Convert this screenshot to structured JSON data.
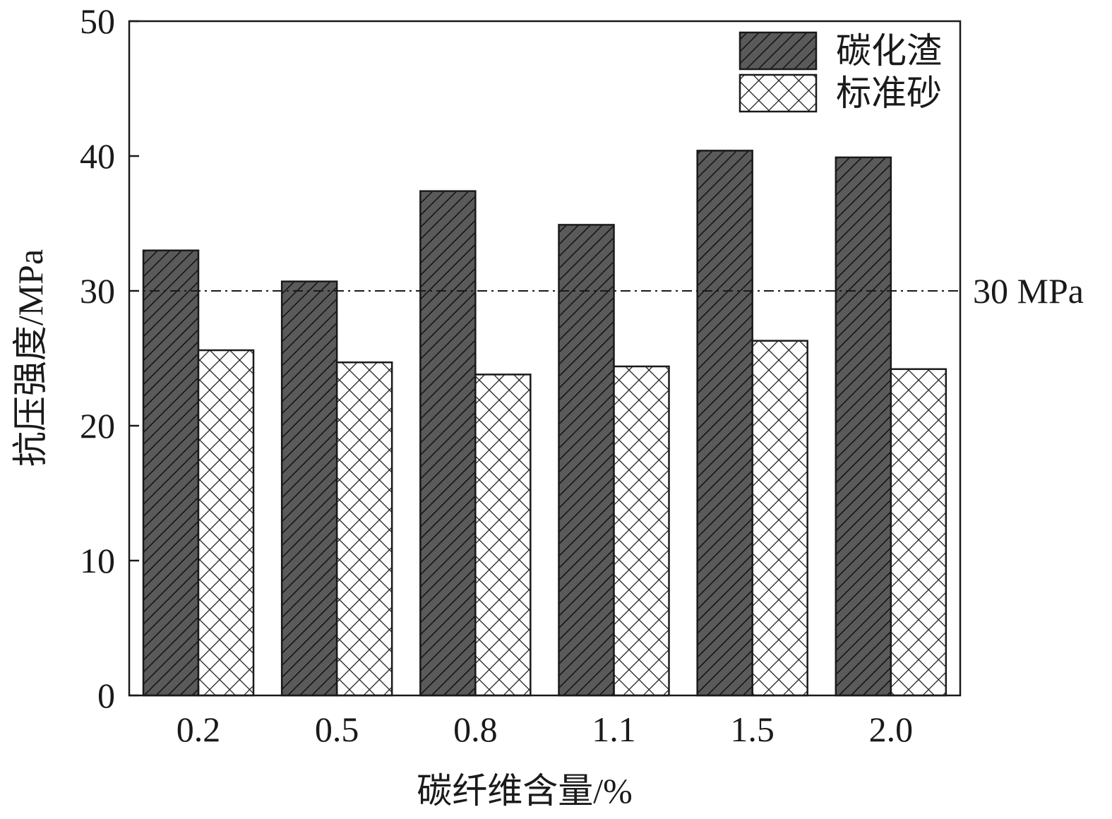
{
  "chart_data": {
    "type": "bar",
    "xlabel": "碳纤维含量/%",
    "ylabel": "抗压强度/MPa",
    "categories": [
      "0.2",
      "0.5",
      "0.8",
      "1.1",
      "1.5",
      "2.0"
    ],
    "ylim": [
      0,
      50
    ],
    "yticks": [
      "0",
      "10",
      "20",
      "30",
      "40",
      "50"
    ],
    "grid": false,
    "legend_position": "top-right",
    "series": [
      {
        "name": "碳化渣",
        "values": [
          33.0,
          30.7,
          37.4,
          34.9,
          40.4,
          39.9
        ],
        "color": "#555555",
        "pattern": "diagonal-hatch"
      },
      {
        "name": "标准砂",
        "values": [
          25.6,
          24.7,
          23.8,
          24.4,
          26.3,
          24.2
        ],
        "color": "#ffffff",
        "pattern": "cross-hatch"
      }
    ],
    "reference_line": {
      "value": 30,
      "label": "30 MPa",
      "style": "dash-dot"
    }
  }
}
